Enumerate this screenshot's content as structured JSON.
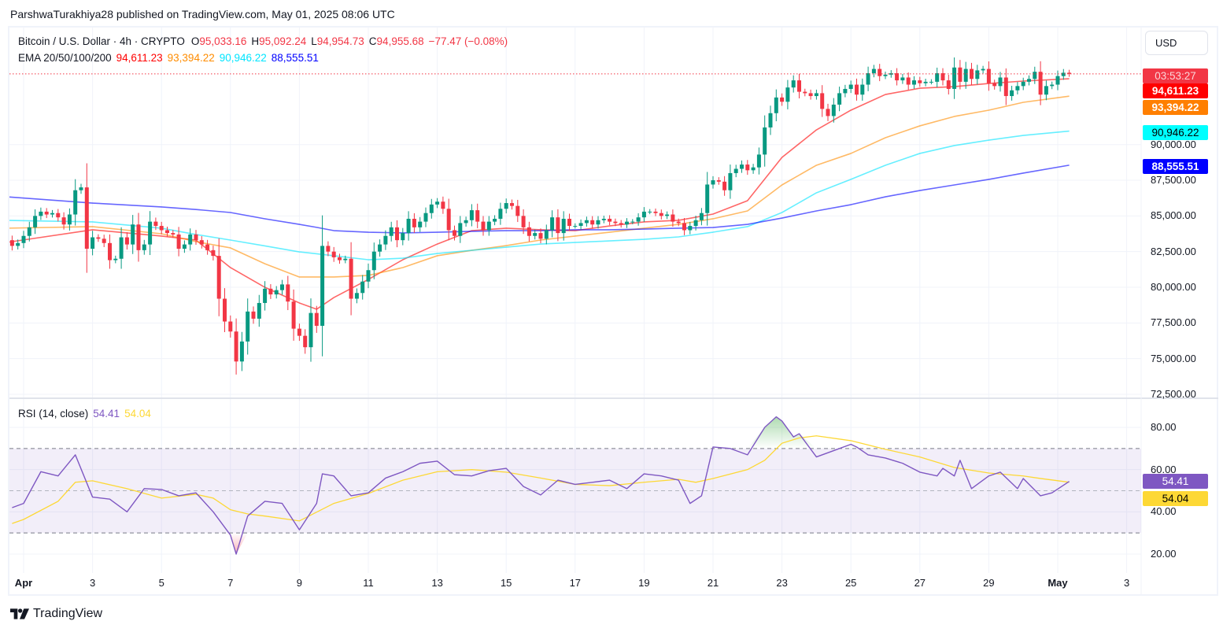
{
  "publisher_line": "ParshwaTurakhiya28 published on TradingView.com, May 01, 2025 08:06 UTC",
  "legend": {
    "symbol": "Bitcoin / U.S. Dollar · 4h · CRYPTO",
    "open_label": "O",
    "open": "95,033.16",
    "high_label": "H",
    "high": "95,092.24",
    "low_label": "L",
    "low": "94,954.73",
    "close_label": "C",
    "close": "94,955.68",
    "change": "−77.47 (−0.08%)",
    "ema_label": "EMA 20/50/100/200",
    "ema20": "94,611.23",
    "ema50": "93,394.22",
    "ema100": "90,946.22",
    "ema200": "88,555.51"
  },
  "rsi_legend": {
    "label": "RSI (14, close)",
    "rsi": "54.41",
    "ma": "54.04"
  },
  "currency_button": "USD",
  "price_axis_ticks": [
    "90,000.00",
    "87,500.00",
    "85,000.00",
    "82,500.00",
    "80,000.00",
    "77,500.00",
    "75,000.00",
    "72,500.00"
  ],
  "rsi_axis_ticks": [
    "80.00",
    "60.00",
    "40.00",
    "20.00"
  ],
  "badges": {
    "countdown": "03:53:27",
    "ema20": "94,611.23",
    "ema50": "93,394.22",
    "ema100": "90,946.22",
    "ema200": "88,555.51",
    "rsi": "54.41",
    "rsi_ma": "54.04"
  },
  "time_axis": [
    {
      "label": "Apr",
      "bold": true,
      "date": "2025-04-01"
    },
    {
      "label": "3",
      "date": "2025-04-03"
    },
    {
      "label": "5",
      "date": "2025-04-05"
    },
    {
      "label": "7",
      "date": "2025-04-07"
    },
    {
      "label": "9",
      "date": "2025-04-09"
    },
    {
      "label": "11",
      "date": "2025-04-11"
    },
    {
      "label": "13",
      "date": "2025-04-13"
    },
    {
      "label": "15",
      "date": "2025-04-15"
    },
    {
      "label": "17",
      "date": "2025-04-17"
    },
    {
      "label": "19",
      "date": "2025-04-19"
    },
    {
      "label": "21",
      "date": "2025-04-21"
    },
    {
      "label": "23",
      "date": "2025-04-23"
    },
    {
      "label": "25",
      "date": "2025-04-25"
    },
    {
      "label": "27",
      "date": "2025-04-27"
    },
    {
      "label": "29",
      "date": "2025-04-29"
    },
    {
      "label": "May",
      "bold": true,
      "date": "2025-05-01"
    },
    {
      "label": "3",
      "date": "2025-05-03"
    }
  ],
  "brand": "TradingView",
  "colors": {
    "up": "#089981",
    "down": "#f23645",
    "ema20": "#ff0000",
    "ema50": "#ff8c00",
    "ema100": "#00e5ff",
    "ema200": "#0000ff",
    "rsi": "#7e57c2",
    "rsi_ma": "#fdd835",
    "last_price": "#f23645"
  },
  "chart_data": [
    {
      "type": "candlestick",
      "title": "Bitcoin / U.S. Dollar · 4h · CRYPTO",
      "ylim": [
        72500,
        97500
      ],
      "grid": true,
      "last_price": 94955.68,
      "candles": {
        "start": "2025-03-31T12:00:00Z",
        "interval_hours": 4,
        "first_open": 83700,
        "close": [
          83300,
          82900,
          83100,
          83600,
          84200,
          85000,
          85300,
          85100,
          85200,
          84900,
          84400,
          85100,
          86800,
          87000,
          82700,
          83500,
          83400,
          83100,
          81900,
          82000,
          83500,
          83000,
          84400,
          82600,
          83000,
          84600,
          84300,
          84000,
          83800,
          83700,
          82700,
          83000,
          83700,
          83300,
          83000,
          82600,
          82200,
          79200,
          77600,
          76900,
          74800,
          76200,
          78300,
          77800,
          78900,
          79900,
          79500,
          79800,
          80200,
          79000,
          77100,
          76600,
          75800,
          78200,
          77300,
          82900,
          82500,
          82100,
          81900,
          82000,
          79200,
          79600,
          80400,
          81200,
          82500,
          83000,
          83600,
          84200,
          83300,
          83800,
          84800,
          84200,
          84600,
          85200,
          85800,
          86000,
          85500,
          84000,
          83600,
          84500,
          84700,
          85400,
          84600,
          84000,
          84600,
          84800,
          85500,
          85900,
          85700,
          85000,
          84200,
          83600,
          83800,
          83400,
          84000,
          84900,
          83800,
          84800,
          84300,
          84300,
          84500,
          84700,
          84400,
          84700,
          84800,
          84600,
          84500,
          84400,
          84600,
          84600,
          84900,
          85300,
          85300,
          85200,
          85000,
          85100,
          84600,
          84500,
          84000,
          84300,
          84700,
          85200,
          87200,
          87500,
          87400,
          86800,
          88000,
          88300,
          88600,
          88200,
          88400,
          89300,
          91200,
          92200,
          93300,
          93000,
          94000,
          94500,
          93700,
          93600,
          93400,
          93600,
          92500,
          92000,
          92800,
          93600,
          93900,
          94200,
          93500,
          94200,
          95000,
          95300,
          94800,
          94900,
          95000,
          94500,
          94700,
          94200,
          94500,
          94300,
          94400,
          94400,
          95000,
          94500,
          93900,
          95400,
          94400,
          95300,
          94600,
          95200,
          95300,
          94300,
          94100,
          94700,
          93400,
          93800,
          94100,
          94400,
          94600,
          95100,
          93500,
          94100,
          94200,
          94800,
          95033.16,
          94955.68
        ]
      },
      "ema_dates": [
        "2025-03-31T12:00Z",
        "2025-04-03T00:00Z",
        "2025-04-05T00:00Z",
        "2025-04-06T00:00Z",
        "2025-04-07T00:00Z",
        "2025-04-08T00:00Z",
        "2025-04-09T00:00Z",
        "2025-04-09T12:00Z",
        "2025-04-10T00:00Z",
        "2025-04-11T00:00Z",
        "2025-04-12T00:00Z",
        "2025-04-13T00:00Z",
        "2025-04-14T00:00Z",
        "2025-04-15T00:00Z",
        "2025-04-16T00:00Z",
        "2025-04-17T00:00Z",
        "2025-04-18T00:00Z",
        "2025-04-19T00:00Z",
        "2025-04-20T00:00Z",
        "2025-04-21T00:00Z",
        "2025-04-22T00:00Z",
        "2025-04-23T00:00Z",
        "2025-04-24T00:00Z",
        "2025-04-25T00:00Z",
        "2025-04-26T00:00Z",
        "2025-04-27T00:00Z",
        "2025-04-28T00:00Z",
        "2025-04-29T00:00Z",
        "2025-04-30T00:00Z",
        "2025-05-01T08:00Z"
      ],
      "series": [
        {
          "name": "EMA 20",
          "key": "ema20",
          "values": [
            83140,
            84030,
            83590,
            83310,
            81380,
            80000,
            78900,
            78460,
            79280,
            80550,
            81930,
            83030,
            83970,
            84140,
            84030,
            83970,
            84300,
            84580,
            84690,
            85130,
            86070,
            89100,
            91030,
            92410,
            93510,
            93950,
            94060,
            94280,
            94450,
            94611.23
          ]
        },
        {
          "name": "EMA 50",
          "key": "ema50",
          "values": [
            84140,
            84250,
            83750,
            83200,
            82760,
            81650,
            80720,
            80720,
            80720,
            80830,
            81380,
            82210,
            82590,
            82920,
            83310,
            83590,
            83860,
            84140,
            84410,
            84800,
            85350,
            87170,
            88550,
            89380,
            90480,
            91310,
            91970,
            92410,
            92960,
            93394.22
          ]
        },
        {
          "name": "EMA 100",
          "key": "ema100",
          "values": [
            84690,
            84580,
            84140,
            83700,
            83310,
            82900,
            82480,
            82350,
            82210,
            81930,
            82040,
            82370,
            82590,
            82810,
            83030,
            83140,
            83250,
            83360,
            83530,
            83860,
            84250,
            85240,
            86620,
            87560,
            88550,
            89380,
            89930,
            90310,
            90640,
            90946.22
          ]
        },
        {
          "name": "EMA 200",
          "key": "ema200",
          "values": [
            86340,
            85900,
            85630,
            85450,
            85240,
            84800,
            84410,
            84200,
            83970,
            83860,
            83810,
            83860,
            83920,
            83970,
            83970,
            84030,
            84030,
            84080,
            84140,
            84190,
            84410,
            84850,
            85350,
            85790,
            86340,
            86780,
            87170,
            87560,
            88000,
            88555.51
          ]
        }
      ]
    },
    {
      "type": "line",
      "title": "RSI (14, close)",
      "ylim": [
        12,
        90
      ],
      "bands": {
        "upper": 70,
        "middle": 50,
        "lower": 30
      },
      "rsi": [
        [
          "2025-03-31T16:00Z",
          42
        ],
        [
          "2025-04-01T00:00Z",
          44
        ],
        [
          "2025-04-01T12:00Z",
          59
        ],
        [
          "2025-04-02T00:00Z",
          57
        ],
        [
          "2025-04-02T12:00Z",
          67
        ],
        [
          "2025-04-03T00:00Z",
          47
        ],
        [
          "2025-04-03T12:00Z",
          46
        ],
        [
          "2025-04-04T00:00Z",
          40
        ],
        [
          "2025-04-04T12:00Z",
          51
        ],
        [
          "2025-04-05T00:00Z",
          50.6
        ],
        [
          "2025-04-05T12:00Z",
          47.6
        ],
        [
          "2025-04-06T00:00Z",
          49
        ],
        [
          "2025-04-06T12:00Z",
          40
        ],
        [
          "2025-04-07T00:00Z",
          29
        ],
        [
          "2025-04-07T04:00Z",
          20
        ],
        [
          "2025-04-07T12:00Z",
          38
        ],
        [
          "2025-04-08T00:00Z",
          45
        ],
        [
          "2025-04-08T12:00Z",
          44
        ],
        [
          "2025-04-09T00:00Z",
          31.5
        ],
        [
          "2025-04-09T12:00Z",
          44
        ],
        [
          "2025-04-09T16:00Z",
          58
        ],
        [
          "2025-04-10T00:00Z",
          57
        ],
        [
          "2025-04-10T12:00Z",
          47.6
        ],
        [
          "2025-04-11T00:00Z",
          49
        ],
        [
          "2025-04-11T12:00Z",
          56
        ],
        [
          "2025-04-12T00:00Z",
          59
        ],
        [
          "2025-04-12T12:00Z",
          63
        ],
        [
          "2025-04-13T00:00Z",
          64
        ],
        [
          "2025-04-13T12:00Z",
          57.6
        ],
        [
          "2025-04-14T00:00Z",
          57
        ],
        [
          "2025-04-14T12:00Z",
          59.5
        ],
        [
          "2025-04-15T00:00Z",
          60.6
        ],
        [
          "2025-04-15T12:00Z",
          52
        ],
        [
          "2025-04-16T00:00Z",
          48
        ],
        [
          "2025-04-16T12:00Z",
          55
        ],
        [
          "2025-04-17T00:00Z",
          53
        ],
        [
          "2025-04-17T12:00Z",
          54
        ],
        [
          "2025-04-18T00:00Z",
          55
        ],
        [
          "2025-04-18T12:00Z",
          51
        ],
        [
          "2025-04-19T00:00Z",
          58
        ],
        [
          "2025-04-19T12:00Z",
          57
        ],
        [
          "2025-04-20T00:00Z",
          55
        ],
        [
          "2025-04-20T08:00Z",
          44
        ],
        [
          "2025-04-20T16:00Z",
          47.6
        ],
        [
          "2025-04-21T00:00Z",
          70.7
        ],
        [
          "2025-04-21T12:00Z",
          70
        ],
        [
          "2025-04-22T00:00Z",
          67
        ],
        [
          "2025-04-22T12:00Z",
          80
        ],
        [
          "2025-04-22T20:00Z",
          85
        ],
        [
          "2025-04-23T00:00Z",
          83
        ],
        [
          "2025-04-23T08:00Z",
          75.5
        ],
        [
          "2025-04-23T12:00Z",
          77
        ],
        [
          "2025-04-24T00:00Z",
          66
        ],
        [
          "2025-04-24T12:00Z",
          69
        ],
        [
          "2025-04-25T00:00Z",
          72
        ],
        [
          "2025-04-25T04:00Z",
          70.7
        ],
        [
          "2025-04-25T12:00Z",
          67
        ],
        [
          "2025-04-26T00:00Z",
          65.5
        ],
        [
          "2025-04-26T12:00Z",
          63
        ],
        [
          "2025-04-27T00:00Z",
          58.8
        ],
        [
          "2025-04-27T12:00Z",
          57
        ],
        [
          "2025-04-27T16:00Z",
          60.6
        ],
        [
          "2025-04-28T00:00Z",
          57
        ],
        [
          "2025-04-28T04:00Z",
          64.4
        ],
        [
          "2025-04-28T12:00Z",
          51
        ],
        [
          "2025-04-29T00:00Z",
          57
        ],
        [
          "2025-04-29T08:00Z",
          58.8
        ],
        [
          "2025-04-29T20:00Z",
          51
        ],
        [
          "2025-04-30T00:00Z",
          55.8
        ],
        [
          "2025-04-30T12:00Z",
          47.6
        ],
        [
          "2025-04-30T20:00Z",
          49
        ],
        [
          "2025-05-01T08:00Z",
          54.41
        ]
      ],
      "rsi_ma": [
        [
          "2025-03-31T16:00Z",
          34.5
        ],
        [
          "2025-04-01T00:00Z",
          36.4
        ],
        [
          "2025-04-02T00:00Z",
          45
        ],
        [
          "2025-04-02T12:00Z",
          54
        ],
        [
          "2025-04-03T00:00Z",
          54.7
        ],
        [
          "2025-04-04T00:00Z",
          51
        ],
        [
          "2025-04-05T00:00Z",
          46.5
        ],
        [
          "2025-04-06T00:00Z",
          48.3
        ],
        [
          "2025-04-06T12:00Z",
          46.5
        ],
        [
          "2025-04-07T00:00Z",
          41
        ],
        [
          "2025-04-07T12:00Z",
          39
        ],
        [
          "2025-04-08T00:00Z",
          38
        ],
        [
          "2025-04-09T00:00Z",
          35.7
        ],
        [
          "2025-04-10T00:00Z",
          44
        ],
        [
          "2025-04-11T00:00Z",
          48.7
        ],
        [
          "2025-04-12T00:00Z",
          55
        ],
        [
          "2025-04-13T00:00Z",
          59
        ],
        [
          "2025-04-14T00:00Z",
          60
        ],
        [
          "2025-04-15T00:00Z",
          58.8
        ],
        [
          "2025-04-16T00:00Z",
          56
        ],
        [
          "2025-04-17T00:00Z",
          53
        ],
        [
          "2025-04-18T00:00Z",
          52.4
        ],
        [
          "2025-04-19T00:00Z",
          54
        ],
        [
          "2025-04-20T00:00Z",
          55.4
        ],
        [
          "2025-04-20T12:00Z",
          54
        ],
        [
          "2025-04-21T00:00Z",
          55.8
        ],
        [
          "2025-04-22T00:00Z",
          60
        ],
        [
          "2025-04-22T12:00Z",
          64.4
        ],
        [
          "2025-04-23T00:00Z",
          72.5
        ],
        [
          "2025-04-23T12:00Z",
          75
        ],
        [
          "2025-04-24T00:00Z",
          76
        ],
        [
          "2025-04-25T00:00Z",
          73.7
        ],
        [
          "2025-04-26T00:00Z",
          69.6
        ],
        [
          "2025-04-27T00:00Z",
          66
        ],
        [
          "2025-04-28T00:00Z",
          61
        ],
        [
          "2025-04-29T00:00Z",
          58.4
        ],
        [
          "2025-04-30T00:00Z",
          57
        ],
        [
          "2025-04-30T12:00Z",
          55.8
        ],
        [
          "2025-05-01T08:00Z",
          54.04
        ]
      ]
    }
  ]
}
